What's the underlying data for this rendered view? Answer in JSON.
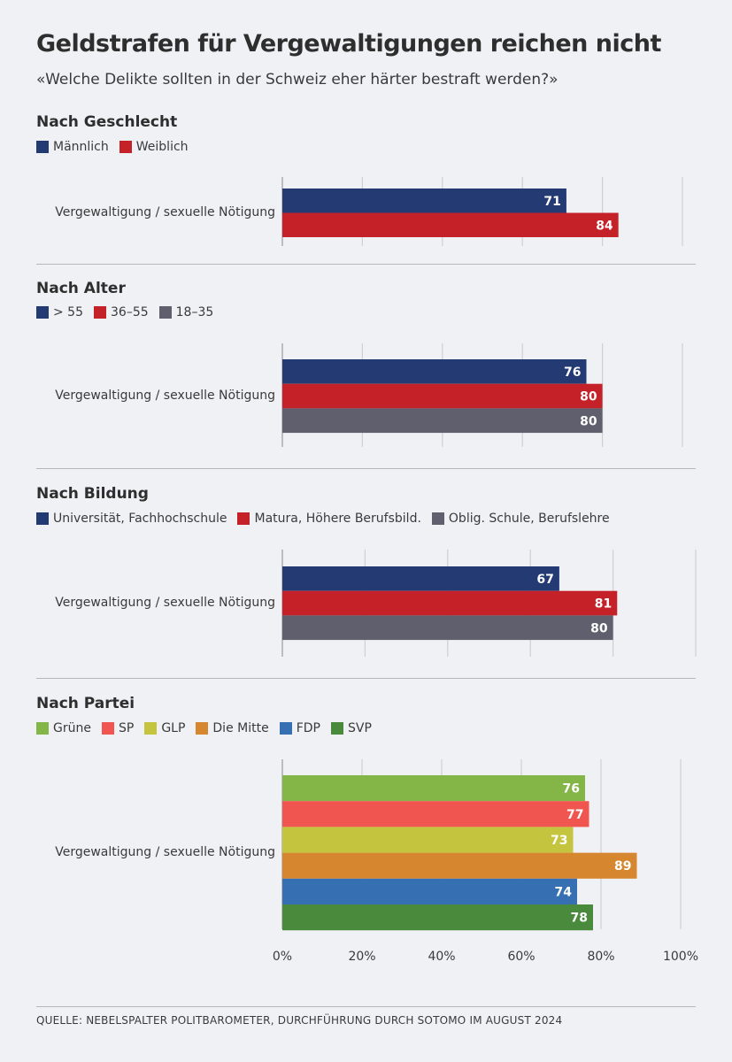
{
  "title": "Geldstrafen für Vergewaltigungen reichen nicht",
  "subtitle": "«Welche Delikte sollten in der Schweiz eher härter bestraft werden?»",
  "source": "QUELLE: NEBELSPALTER POLITBAROMETER, DURCHFÜHRUNG DURCH SOTOMO IM AUGUST 2024",
  "chart_data": [
    {
      "type": "bar",
      "title": "Nach Geschlecht",
      "categories": [
        "Vergewaltigung / sexuelle Nötigung"
      ],
      "series": [
        {
          "name": "Männlich",
          "color": "#243a73",
          "values": [
            71
          ]
        },
        {
          "name": "Weiblich",
          "color": "#c42128",
          "values": [
            84
          ]
        }
      ],
      "xlim": [
        0,
        100
      ],
      "grid": true,
      "legend": "top-left"
    },
    {
      "type": "bar",
      "title": "Nach Alter",
      "categories": [
        "Vergewaltigung / sexuelle Nötigung"
      ],
      "series": [
        {
          "name": "> 55",
          "color": "#243a73",
          "values": [
            76
          ]
        },
        {
          "name": "36–55",
          "color": "#c42128",
          "values": [
            80
          ]
        },
        {
          "name": "18–35",
          "color": "#5f5f6d",
          "values": [
            80
          ]
        }
      ],
      "xlim": [
        0,
        100
      ],
      "grid": true,
      "legend": "top-left"
    },
    {
      "type": "bar",
      "title": "Nach Bildung",
      "categories": [
        "Vergewaltigung / sexuelle Nötigung"
      ],
      "series": [
        {
          "name": "Universität, Fachhochschule",
          "color": "#243a73",
          "values": [
            67
          ]
        },
        {
          "name": "Matura, Höhere Berufsbild.",
          "color": "#c42128",
          "values": [
            81
          ]
        },
        {
          "name": "Oblig. Schule, Berufslehre",
          "color": "#5f5f6d",
          "values": [
            80
          ]
        }
      ],
      "xlim": [
        0,
        100
      ],
      "grid": true,
      "legend": "top-left"
    },
    {
      "type": "bar",
      "title": "Nach Partei",
      "categories": [
        "Vergewaltigung / sexuelle Nötigung"
      ],
      "series": [
        {
          "name": "Grüne",
          "color": "#84b547",
          "values": [
            76
          ]
        },
        {
          "name": "SP",
          "color": "#f05550",
          "values": [
            77
          ]
        },
        {
          "name": "GLP",
          "color": "#c4c43e",
          "values": [
            73
          ]
        },
        {
          "name": "Die Mitte",
          "color": "#d6862e",
          "values": [
            89
          ]
        },
        {
          "name": "FDP",
          "color": "#3770b2",
          "values": [
            74
          ]
        },
        {
          "name": "SVP",
          "color": "#4a8a3c",
          "values": [
            78
          ]
        }
      ],
      "xlim": [
        0,
        100
      ],
      "grid": true,
      "legend": "top-left",
      "xticks": [
        "0%",
        "20%",
        "40%",
        "60%",
        "80%",
        "100%"
      ]
    }
  ]
}
